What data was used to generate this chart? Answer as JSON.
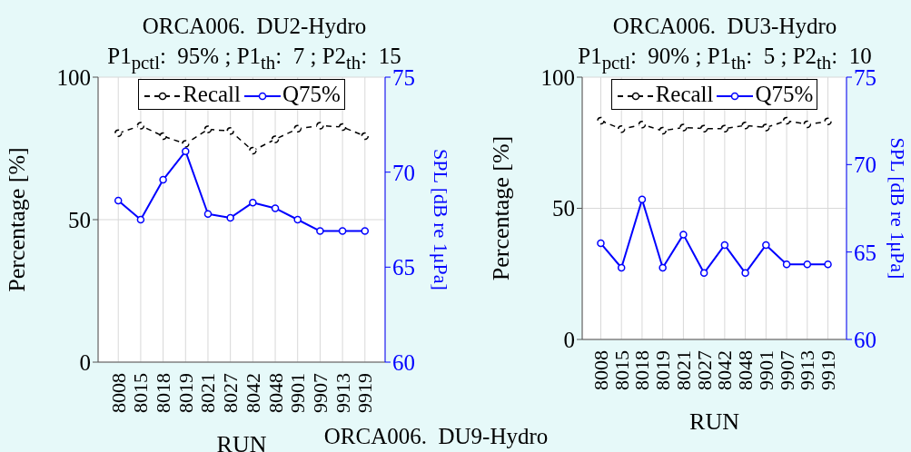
{
  "chart_data": [
    {
      "type": "line",
      "title": "ORCA006.  DU2-Hydro",
      "subtitle": "P1$_{pctl}$:  95% ; P1$_{th}$:  7 ; P2$_{th}$:  15",
      "xlabel": "RUN",
      "ylabel": "Percentage [%]",
      "y2label": "SPL [dB re 1μPa]",
      "categories": [
        "8008",
        "8015",
        "8018",
        "8019",
        "8021",
        "8027",
        "8042",
        "8048",
        "9901",
        "9907",
        "9913",
        "9919"
      ],
      "series": [
        {
          "name": "Recall",
          "color": "#000000",
          "line_style": "dashed",
          "values": [
            80.3,
            83.0,
            79.3,
            76.6,
            81.7,
            81.1,
            74.2,
            78.2,
            81.9,
            83.0,
            82.5,
            79.3
          ]
        },
        {
          "name": "Q75%",
          "color": "#0000ff",
          "line_style": "solid",
          "axis": "y2",
          "values": [
            68.5,
            67.5,
            69.6,
            71.1,
            67.8,
            67.6,
            68.4,
            68.1,
            67.5,
            66.9,
            66.9,
            66.9
          ]
        }
      ],
      "ylim": [
        0,
        100
      ],
      "yticks": [
        0,
        50,
        100
      ],
      "y2lim": [
        60,
        75
      ],
      "y2ticks": [
        60,
        65,
        70,
        75
      ],
      "grid": true,
      "legend": "top",
      "marker": "circle"
    },
    {
      "type": "line",
      "title": "ORCA006.  DU3-Hydro",
      "subtitle": "P1$_{pctl}$:  90% ; P1$_{th}$:  5 ; P2$_{th}$:  10",
      "xlabel": "RUN",
      "ylabel": "Percentage [%]",
      "y2label": "SPL [dB re 1μPa]",
      "categories": [
        "8008",
        "8015",
        "8018",
        "8019",
        "8021",
        "8027",
        "8042",
        "8048",
        "9901",
        "9907",
        "9913",
        "9919"
      ],
      "series": [
        {
          "name": "Recall",
          "color": "#000000",
          "line_style": "dashed",
          "values": [
            83.4,
            80.2,
            81.9,
            79.6,
            80.8,
            80.4,
            80.4,
            81.6,
            80.8,
            83.4,
            82.0,
            83.1
          ]
        },
        {
          "name": "Q75%",
          "color": "#0000ff",
          "line_style": "solid",
          "axis": "y2",
          "values": [
            65.5,
            64.1,
            68.0,
            64.1,
            66.0,
            63.8,
            65.4,
            63.8,
            65.4,
            64.3,
            64.3,
            64.3
          ]
        }
      ],
      "ylim": [
        0,
        100
      ],
      "yticks": [
        0,
        50,
        100
      ],
      "y2lim": [
        60,
        75
      ],
      "y2ticks": [
        60,
        65,
        70,
        75
      ],
      "grid": true,
      "legend": "top",
      "marker": "circle"
    },
    {
      "type": "other",
      "title": "ORCA006.  DU9-Hydro"
    }
  ]
}
